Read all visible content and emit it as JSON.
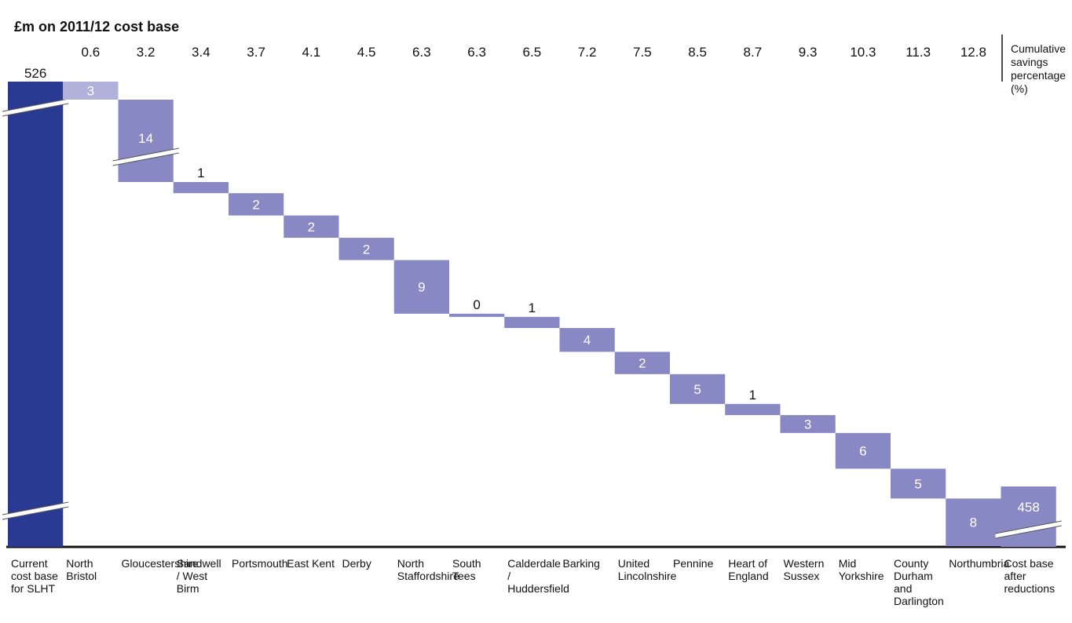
{
  "chart_data": {
    "type": "bar",
    "subtype": "waterfall",
    "title": "£m on 2011/12 cost base",
    "start": {
      "label": "Current cost base for SLHT",
      "value": 526
    },
    "end": {
      "label": "Cost base after reductions",
      "value": 458
    },
    "steps": [
      {
        "label": "North Bristol",
        "value": 3,
        "cumulative_pct": "0.6"
      },
      {
        "label": "Gloucestershire",
        "value": 14,
        "cumulative_pct": "3.2"
      },
      {
        "label": "Sandwell / West Birm",
        "value": 1,
        "cumulative_pct": "3.4"
      },
      {
        "label": "Portsmouth",
        "value": 2,
        "cumulative_pct": "3.7"
      },
      {
        "label": "East Kent",
        "value": 2,
        "cumulative_pct": "4.1"
      },
      {
        "label": "Derby",
        "value": 2,
        "cumulative_pct": "4.5"
      },
      {
        "label": "North Staffordshire",
        "value": 9,
        "cumulative_pct": "6.3"
      },
      {
        "label": "South Tees",
        "value": 0,
        "cumulative_pct": "6.3"
      },
      {
        "label": "Calderdale / Huddersfield",
        "value": 1,
        "cumulative_pct": "6.5"
      },
      {
        "label": "Barking",
        "value": 4,
        "cumulative_pct": "7.2"
      },
      {
        "label": "United Lincolnshire",
        "value": 2,
        "cumulative_pct": "7.5"
      },
      {
        "label": "Pennine",
        "value": 5,
        "cumulative_pct": "8.5"
      },
      {
        "label": "Heart of England",
        "value": 1,
        "cumulative_pct": "8.7"
      },
      {
        "label": "Western Sussex",
        "value": 3,
        "cumulative_pct": "9.3"
      },
      {
        "label": "Mid Yorkshire",
        "value": 6,
        "cumulative_pct": "10.3"
      },
      {
        "label": "County Durham and Darlington",
        "value": 5,
        "cumulative_pct": "11.3"
      },
      {
        "label": "Northumbria",
        "value": 8,
        "cumulative_pct": "12.8"
      }
    ],
    "cumulative_label": "Cumulative savings percentage (%)",
    "colors": {
      "start": "#2a3a92",
      "first_step": "#b1b1dc",
      "step": "#8888c4",
      "axis": "#111111"
    }
  }
}
